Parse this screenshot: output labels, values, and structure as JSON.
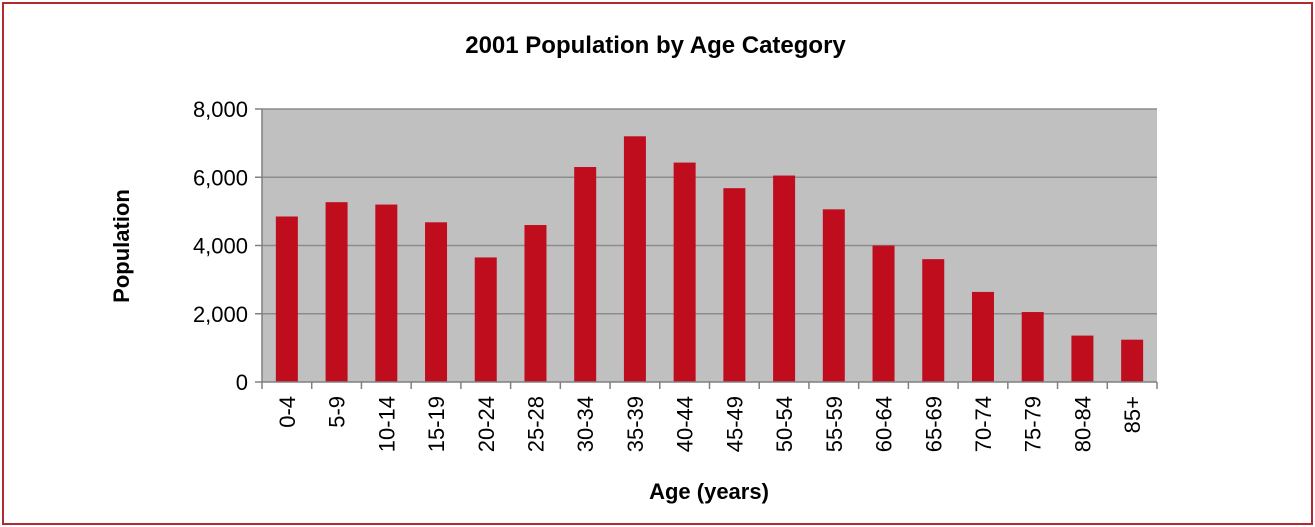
{
  "chart_data": {
    "type": "bar",
    "title": "2001 Population by Age Category",
    "xlabel": "Age (years)",
    "ylabel": "Population",
    "categories": [
      "0-4",
      "5-9",
      "10-14",
      "15-19",
      "20-24",
      "25-28",
      "30-34",
      "35-39",
      "40-44",
      "45-49",
      "50-54",
      "55-59",
      "60-64",
      "65-69",
      "70-74",
      "75-79",
      "80-84",
      "85+"
    ],
    "values": [
      4850,
      5270,
      5200,
      4680,
      3650,
      4600,
      6300,
      7200,
      6430,
      5680,
      6050,
      5060,
      4000,
      3600,
      2640,
      2050,
      1360,
      1240
    ],
    "ylim": [
      0,
      8000
    ],
    "yticks": [
      "0",
      "2,000",
      "4,000",
      "6,000",
      "8,000"
    ],
    "ytick_values": [
      0,
      2000,
      4000,
      6000,
      8000
    ],
    "grid": true,
    "legend": "none",
    "colors": {
      "bar": "#c00d1e",
      "plot_bg": "#c0c0c0",
      "gridline": "#8c8c8c",
      "frame": "#b02a30"
    }
  }
}
